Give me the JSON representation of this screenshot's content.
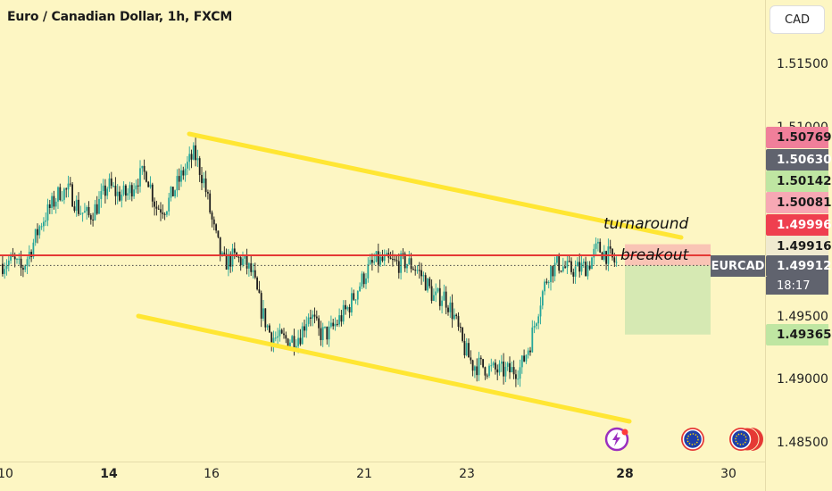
{
  "header": {
    "title": "Euro / Canadian Dollar, 1h, FXCM",
    "currency_button": "CAD"
  },
  "annotations": {
    "turnaround": "turnaround",
    "breakout": "breakout"
  },
  "symbol_tag": "EURCAD",
  "countdown": "18:17",
  "price_axis": {
    "ticks": [
      "1.51500",
      "1.51000",
      "1.49500",
      "1.49000",
      "1.48500"
    ]
  },
  "time_axis": {
    "ticks": [
      "10",
      "14",
      "16",
      "21",
      "23",
      "28",
      "30"
    ]
  },
  "price_labels": [
    {
      "label": "1.50769",
      "bg": "#f07f9a",
      "fg": "#1a1a1a"
    },
    {
      "label": "1.50630",
      "bg": "#60636e",
      "fg": "#ffffff"
    },
    {
      "label": "1.50142",
      "bg": "#bfe6a2",
      "fg": "#1a1a1a"
    },
    {
      "label": "1.50081",
      "bg": "#f7a8b4",
      "fg": "#1a1a1a"
    },
    {
      "label": "1.49996",
      "bg": "#ef3f4f",
      "fg": "#ffffff"
    },
    {
      "label": "1.49916",
      "bg": "#f0ead0",
      "fg": "#1a1a1a"
    },
    {
      "label": "1.49912",
      "bg": "#60636e",
      "fg": "#ffffff"
    },
    {
      "label": "1.49365",
      "bg": "#bfe6a2",
      "fg": "#1a1a1a"
    }
  ],
  "colors": {
    "background": "#fdf6c3",
    "bull_candle": "#26a69a",
    "bear_candle": "#1e1e1e",
    "channel_line": "#ffe633",
    "resistance_line": "#e53935"
  },
  "chart_data": {
    "type": "candlestick",
    "symbol": "EURCAD",
    "interval": "1h",
    "ylim": [
      1.4825,
      1.519
    ],
    "path_points": [
      [
        1.4995,
        1.499
      ],
      [
        1.4998,
        1.4993
      ],
      [
        1.499,
        1.4985
      ],
      [
        1.5015,
        1.4995
      ],
      [
        1.5035,
        1.5015
      ],
      [
        1.5045,
        1.503
      ],
      [
        1.506,
        1.504
      ],
      [
        1.5055,
        1.5045
      ],
      [
        1.503,
        1.504
      ],
      [
        1.5025,
        1.5035
      ],
      [
        1.505,
        1.503
      ],
      [
        1.5065,
        1.5045
      ],
      [
        1.504,
        1.5055
      ],
      [
        1.5055,
        1.504
      ],
      [
        1.507,
        1.505
      ],
      [
        1.506,
        1.507
      ],
      [
        1.503,
        1.5045
      ],
      [
        1.504,
        1.5035
      ],
      [
        1.506,
        1.5045
      ],
      [
        1.5075,
        1.506
      ],
      [
        1.509,
        1.507
      ],
      [
        1.5045,
        1.507
      ],
      [
        1.501,
        1.503
      ],
      [
        1.4985,
        1.5
      ],
      [
        1.5005,
        1.499
      ],
      [
        1.499,
        1.5
      ],
      [
        1.498,
        1.499
      ],
      [
        1.494,
        1.497
      ],
      [
        1.493,
        1.494
      ],
      [
        1.4935,
        1.493
      ],
      [
        1.493,
        1.4935
      ],
      [
        1.494,
        1.4932
      ],
      [
        1.4965,
        1.4945
      ],
      [
        1.493,
        1.4945
      ],
      [
        1.494,
        1.4935
      ],
      [
        1.4955,
        1.494
      ],
      [
        1.4965,
        1.495
      ],
      [
        1.498,
        1.4965
      ],
      [
        1.4995,
        1.498
      ],
      [
        1.499,
        1.5
      ],
      [
        1.4998,
        1.499
      ],
      [
        1.499,
        1.4995
      ],
      [
        1.4998,
        1.499
      ],
      [
        1.4985,
        1.4995
      ],
      [
        1.4975,
        1.4985
      ],
      [
        1.496,
        1.497
      ],
      [
        1.4975,
        1.496
      ],
      [
        1.4945,
        1.496
      ],
      [
        1.492,
        1.4935
      ],
      [
        1.4905,
        1.492
      ],
      [
        1.4915,
        1.4908
      ],
      [
        1.4905,
        1.4912
      ],
      [
        1.491,
        1.4905
      ],
      [
        1.4905,
        1.491
      ],
      [
        1.4915,
        1.4905
      ],
      [
        1.494,
        1.492
      ],
      [
        1.4975,
        1.495
      ],
      [
        1.4995,
        1.498
      ],
      [
        1.4995,
        1.499
      ],
      [
        1.4985,
        1.499
      ],
      [
        1.4992,
        1.4985
      ],
      [
        1.499,
        1.4992
      ],
      [
        1.5015,
        1.4995
      ],
      [
        1.4995,
        1.5005
      ],
      [
        1.499,
        1.4995
      ]
    ],
    "current_price": 1.49912,
    "resistance_level": 1.49945,
    "trend_channel": {
      "upper": [
        [
          1.5093
        ],
        [
          1.5014
        ]
      ],
      "lower": [
        [
          1.4958
        ],
        [
          1.4865
        ]
      ]
    },
    "position": {
      "entry": 1.49912,
      "stop": 1.50081,
      "target": 1.49365
    }
  }
}
